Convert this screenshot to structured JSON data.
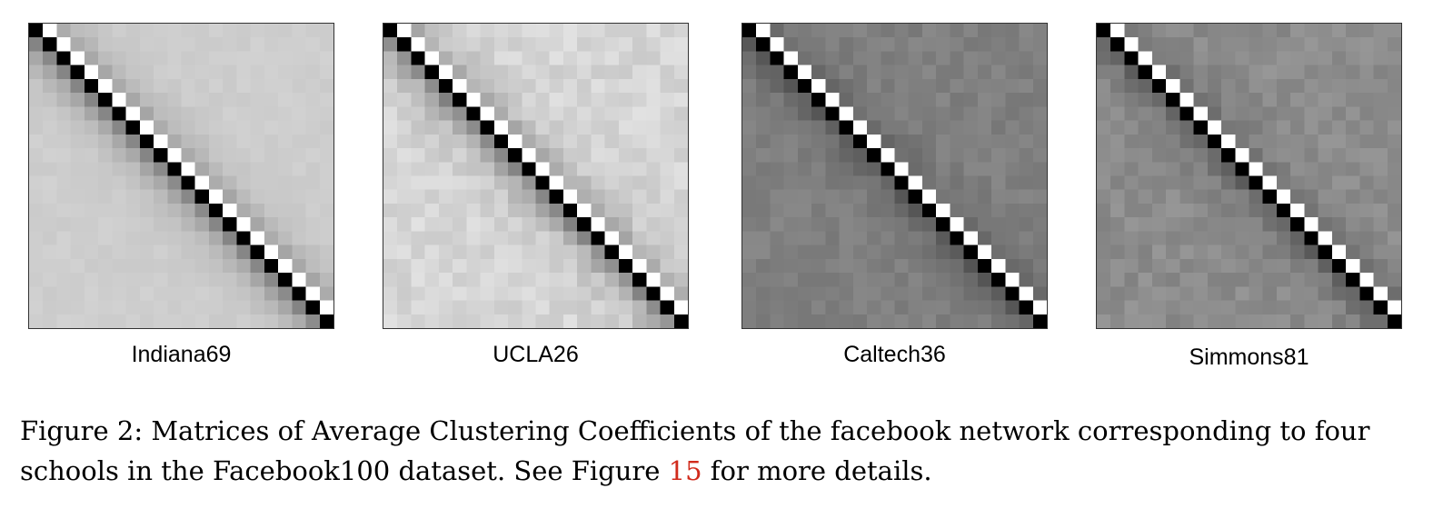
{
  "figure": {
    "panels": [
      {
        "label": "Indiana69",
        "base_gray": 206,
        "diag_gradient": 70,
        "noise": 4
      },
      {
        "label": "UCLA26",
        "base_gray": 214,
        "diag_gradient": 75,
        "noise": 12
      },
      {
        "label": "Caltech36",
        "base_gray": 128,
        "diag_gradient": 35,
        "noise": 9
      },
      {
        "label": "Simmons81",
        "base_gray": 140,
        "diag_gradient": 40,
        "noise": 11
      }
    ],
    "grid_size": 22,
    "caption": {
      "prefix": "Figure 2: Matrices of Average Clustering Coefficients of the facebook network corresponding to four schools in the Facebook100 dataset. See Figure ",
      "ref": "15",
      "suffix": " for more details."
    }
  }
}
